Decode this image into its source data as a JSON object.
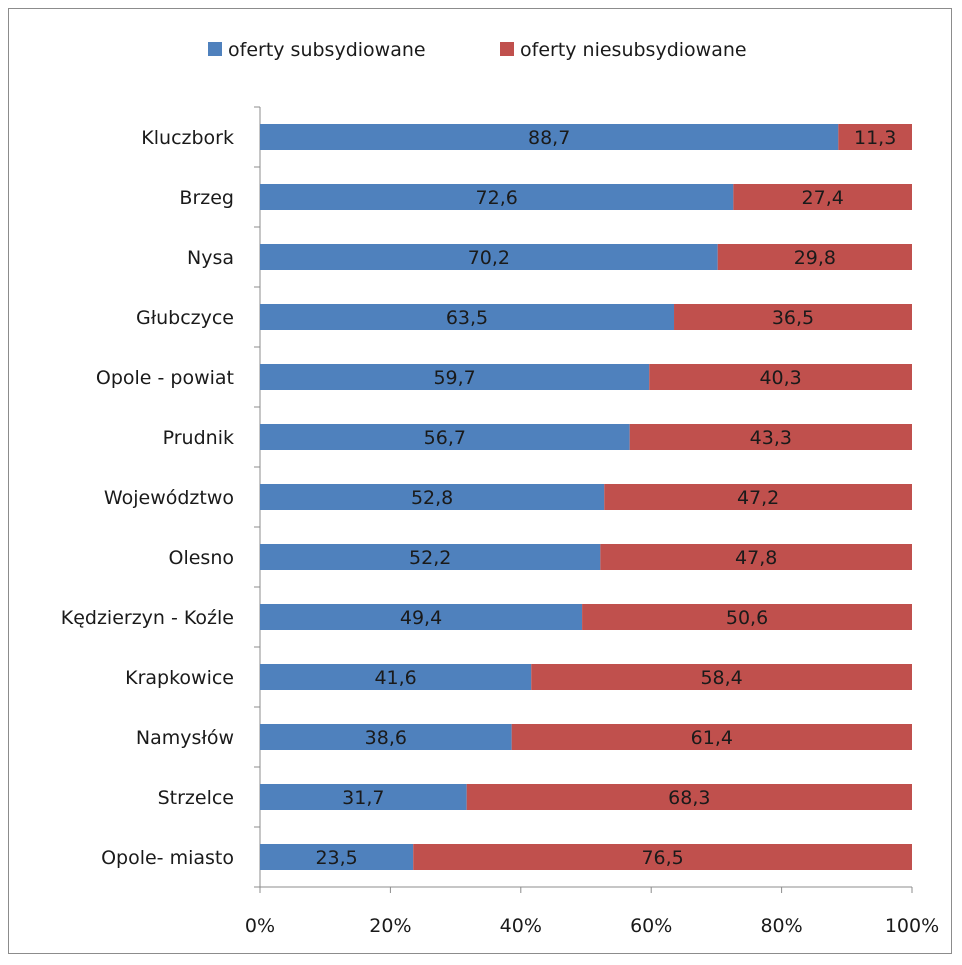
{
  "chart_data": {
    "type": "bar",
    "orientation": "horizontal",
    "stacked": "percent",
    "categories": [
      "Kluczbork",
      "Brzeg",
      "Nysa",
      "Głubczyce",
      "Opole - powiat",
      "Prudnik",
      "Województwo",
      "Olesno",
      "Kędzierzyn - Koźle",
      "Krapkowice",
      "Namysłów",
      "Strzelce",
      "Opole- miasto"
    ],
    "series": [
      {
        "name": "oferty subsydiowane",
        "color": "#4f81bd",
        "values": [
          88.7,
          72.6,
          70.2,
          63.5,
          59.7,
          56.7,
          52.8,
          52.2,
          49.4,
          41.6,
          38.6,
          31.7,
          23.5
        ]
      },
      {
        "name": "oferty niesubsydiowane",
        "color": "#c0504d",
        "values": [
          11.3,
          27.4,
          29.8,
          36.5,
          40.3,
          43.3,
          47.2,
          47.8,
          50.6,
          58.4,
          61.4,
          68.3,
          76.5
        ]
      }
    ],
    "xticks": [
      "0%",
      "20%",
      "40%",
      "60%",
      "80%",
      "100%"
    ],
    "xlim": [
      0,
      100
    ],
    "legend": "top",
    "grid": false
  }
}
